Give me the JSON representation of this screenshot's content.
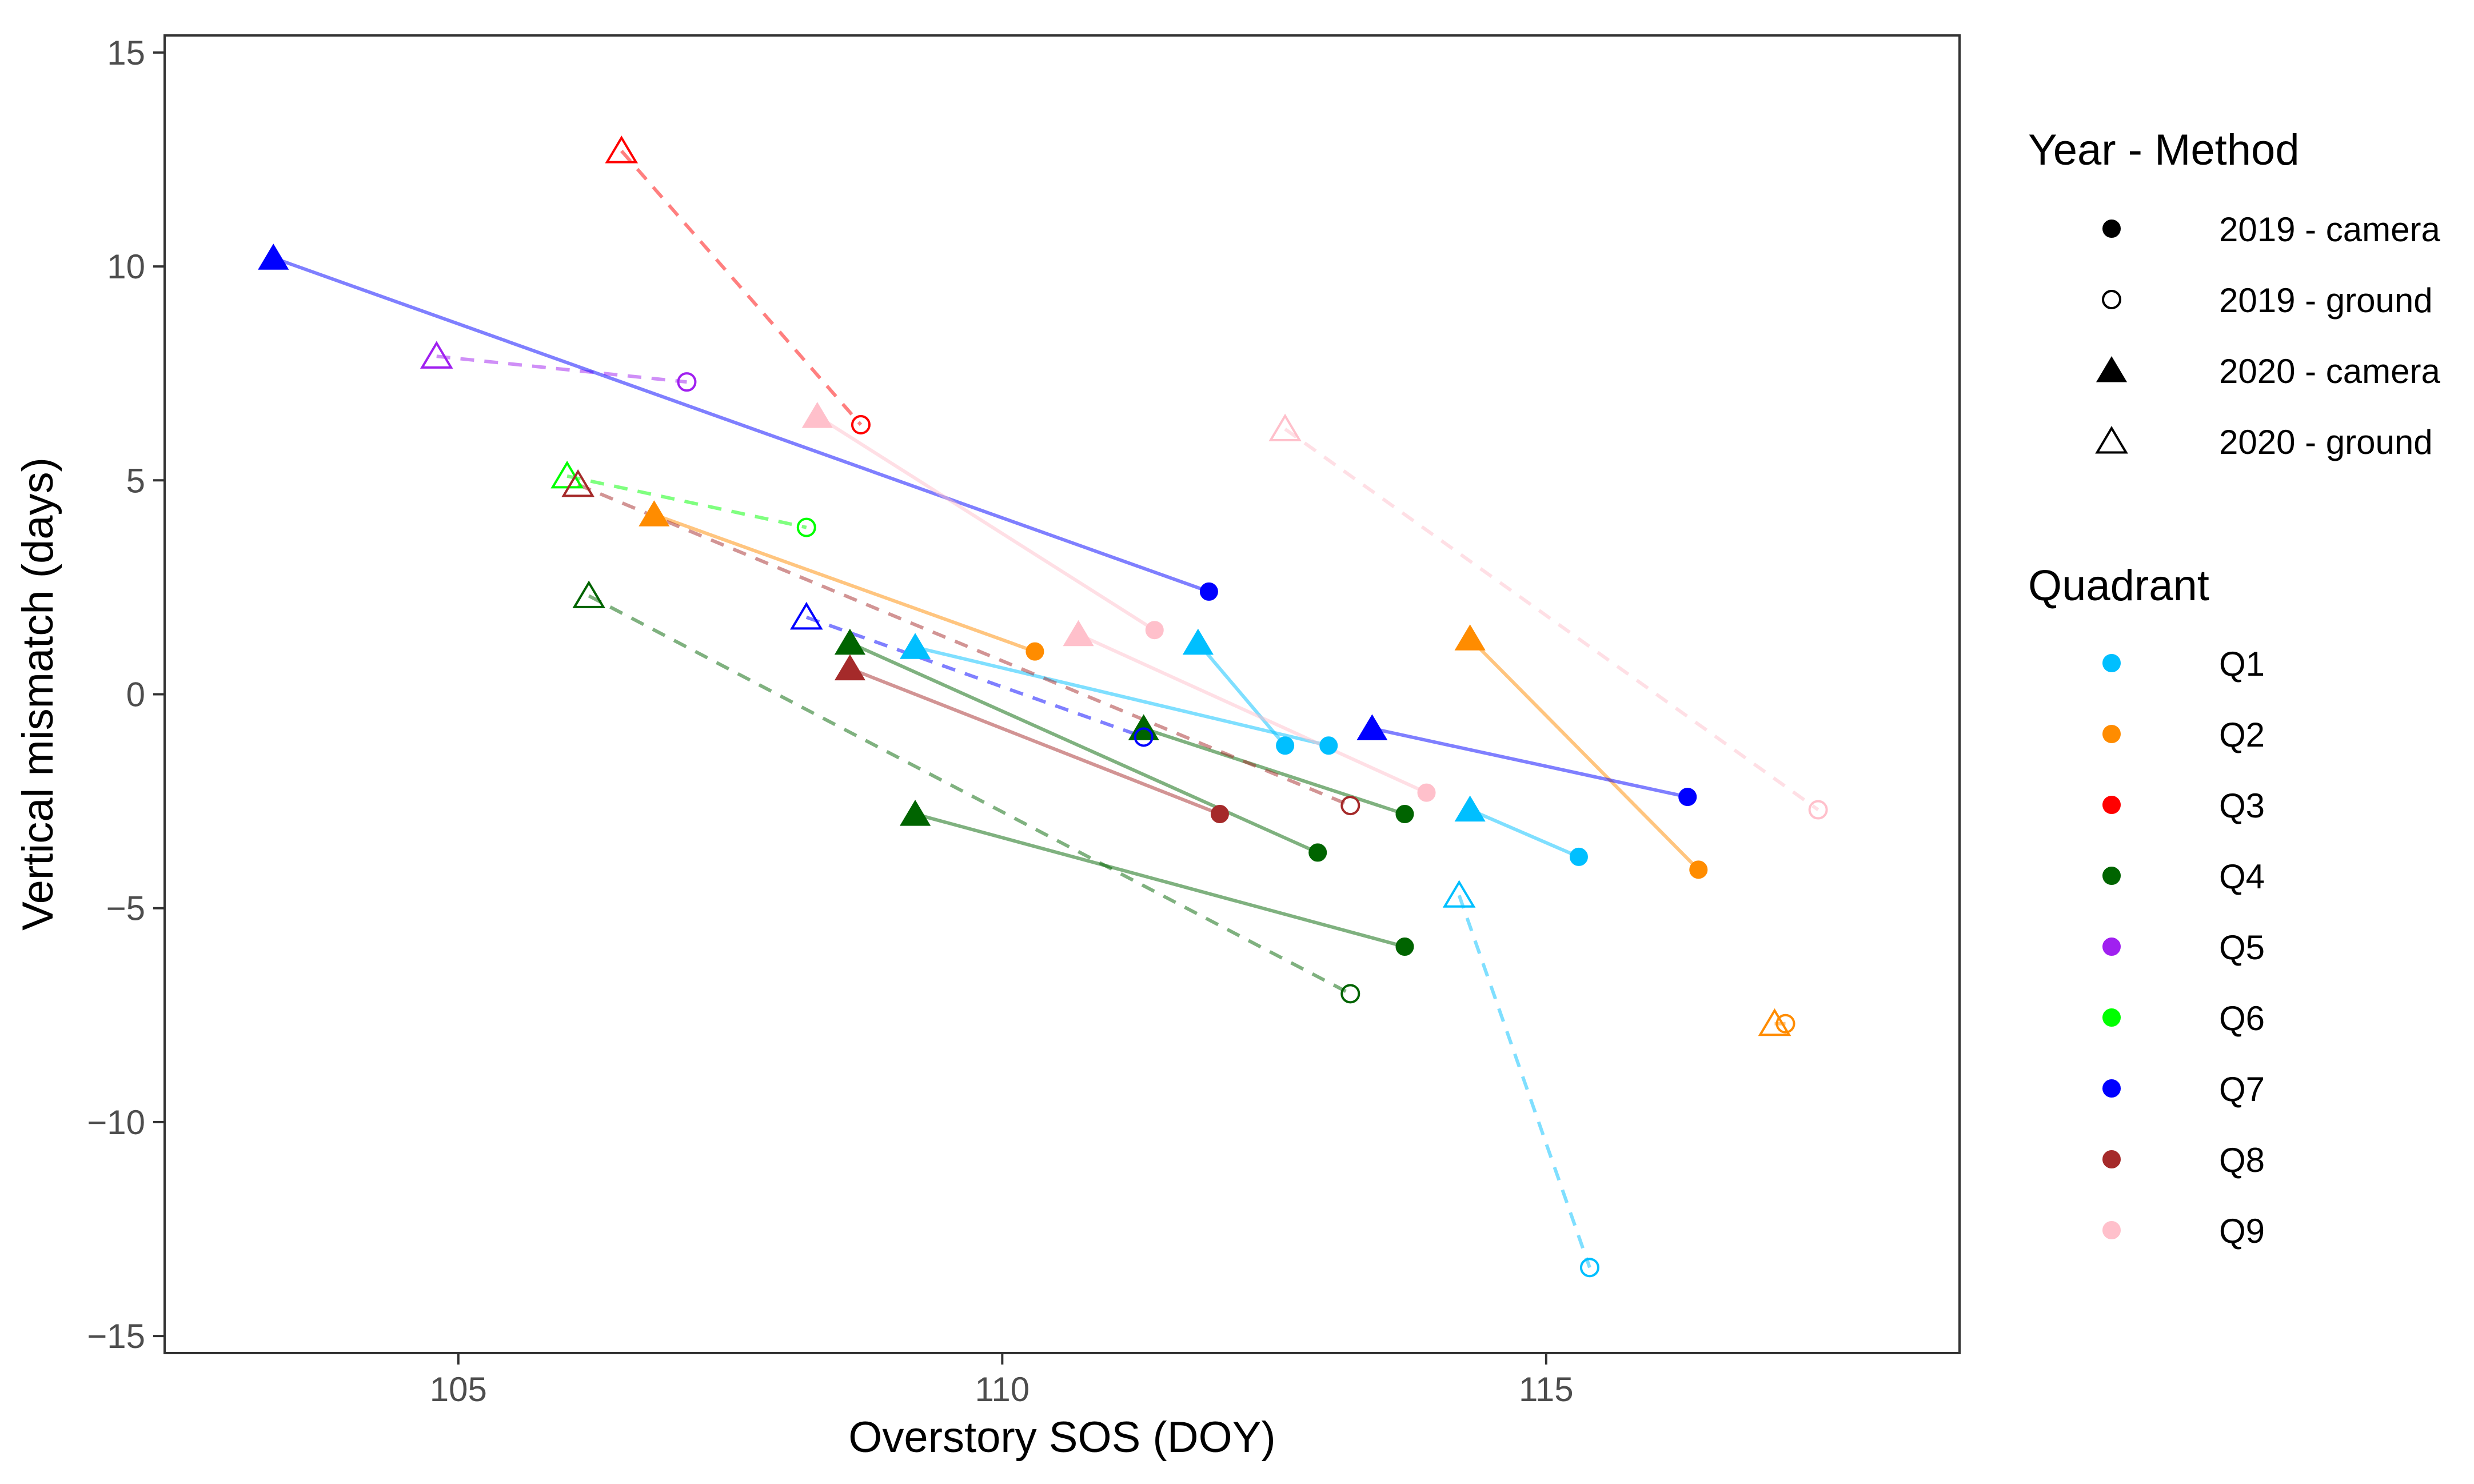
{
  "chart_data": {
    "type": "scatter",
    "title": "",
    "xlabel": "Overstory SOS (DOY)",
    "ylabel": "Vertical mismatch (days)",
    "xlim": [
      102.3,
      118.8
    ],
    "ylim": [
      -15.4,
      15.4
    ],
    "x_ticks": [
      105,
      110,
      115
    ],
    "x_tick_labels": [
      "105",
      "110",
      "115"
    ],
    "y_ticks": [
      15,
      10,
      5,
      0,
      -5,
      -10,
      -15
    ],
    "y_tick_labels": [
      "15",
      "10",
      "5",
      "0",
      "−5",
      "−10",
      "−15"
    ],
    "grid": false,
    "legend_method": {
      "title": "Year - Method",
      "entries": [
        {
          "label": "2019 - camera",
          "shape": "circle",
          "fill": true
        },
        {
          "label": "2019 - ground",
          "shape": "circle",
          "fill": false
        },
        {
          "label": "2020 - camera",
          "shape": "triangle",
          "fill": true
        },
        {
          "label": "2020 - ground",
          "shape": "triangle",
          "fill": false
        }
      ]
    },
    "legend_quadrant": {
      "title": "Quadrant",
      "entries": [
        {
          "label": "Q1",
          "color": "#00BFFF"
        },
        {
          "label": "Q2",
          "color": "#FF8C00"
        },
        {
          "label": "Q3",
          "color": "#FF0000"
        },
        {
          "label": "Q4",
          "color": "#006400"
        },
        {
          "label": "Q5",
          "color": "#A020F0"
        },
        {
          "label": "Q6",
          "color": "#00FF00"
        },
        {
          "label": "Q7",
          "color": "#0000FF"
        },
        {
          "label": "Q8",
          "color": "#A52A2A"
        },
        {
          "label": "Q9",
          "color": "#FFC0CB"
        }
      ]
    },
    "series": [
      {
        "name": "Q1",
        "method": "camera",
        "color": "#00BFFF",
        "points": [
          {
            "x": 109.2,
            "y": 1.1,
            "year": 2020
          },
          {
            "x": 113.0,
            "y": -1.2,
            "year": 2019
          }
        ]
      },
      {
        "name": "Q1",
        "method": "camera",
        "color": "#00BFFF",
        "points": [
          {
            "x": 111.8,
            "y": 1.2,
            "year": 2020
          },
          {
            "x": 112.6,
            "y": -1.2,
            "year": 2019
          }
        ]
      },
      {
        "name": "Q1",
        "method": "camera",
        "color": "#00BFFF",
        "points": [
          {
            "x": 114.3,
            "y": -2.7,
            "year": 2020
          },
          {
            "x": 115.3,
            "y": -3.8,
            "year": 2019
          }
        ]
      },
      {
        "name": "Q1",
        "method": "ground",
        "color": "#00BFFF",
        "points": [
          {
            "x": 114.2,
            "y": -4.7,
            "year": 2020
          },
          {
            "x": 115.4,
            "y": -13.4,
            "year": 2019
          }
        ]
      },
      {
        "name": "Q2",
        "method": "camera",
        "color": "#FF8C00",
        "points": [
          {
            "x": 106.8,
            "y": 4.2,
            "year": 2020
          },
          {
            "x": 110.3,
            "y": 1.0,
            "year": 2019
          }
        ]
      },
      {
        "name": "Q2",
        "method": "camera",
        "color": "#FF8C00",
        "points": [
          {
            "x": 114.3,
            "y": 1.3,
            "year": 2020
          },
          {
            "x": 116.4,
            "y": -4.1,
            "year": 2019
          }
        ]
      },
      {
        "name": "Q2",
        "method": "ground",
        "color": "#FF8C00",
        "points": [
          {
            "x": 117.1,
            "y": -7.7,
            "year": 2020
          },
          {
            "x": 117.2,
            "y": -7.7,
            "year": 2019
          }
        ]
      },
      {
        "name": "Q3",
        "method": "ground",
        "color": "#FF0000",
        "points": [
          {
            "x": 106.5,
            "y": 12.7,
            "year": 2020
          },
          {
            "x": 108.7,
            "y": 6.3,
            "year": 2019
          }
        ]
      },
      {
        "name": "Q4",
        "method": "camera",
        "color": "#006400",
        "points": [
          {
            "x": 108.6,
            "y": 1.2,
            "year": 2020
          },
          {
            "x": 112.9,
            "y": -3.7,
            "year": 2019
          }
        ]
      },
      {
        "name": "Q4",
        "method": "camera",
        "color": "#006400",
        "points": [
          {
            "x": 111.3,
            "y": -0.8,
            "year": 2020
          },
          {
            "x": 113.7,
            "y": -2.8,
            "year": 2019
          }
        ]
      },
      {
        "name": "Q4",
        "method": "camera",
        "color": "#006400",
        "points": [
          {
            "x": 109.2,
            "y": -2.8,
            "year": 2020
          },
          {
            "x": 113.7,
            "y": -5.9,
            "year": 2019
          }
        ]
      },
      {
        "name": "Q4",
        "method": "ground",
        "color": "#006400",
        "points": [
          {
            "x": 106.2,
            "y": 2.3,
            "year": 2020
          },
          {
            "x": 113.2,
            "y": -7.0,
            "year": 2019
          }
        ]
      },
      {
        "name": "Q5",
        "method": "ground",
        "color": "#A020F0",
        "points": [
          {
            "x": 104.8,
            "y": 7.9,
            "year": 2020
          },
          {
            "x": 107.1,
            "y": 7.3,
            "year": 2019
          }
        ]
      },
      {
        "name": "Q6",
        "method": "ground",
        "color": "#00FF00",
        "points": [
          {
            "x": 106.0,
            "y": 5.1,
            "year": 2020
          },
          {
            "x": 108.2,
            "y": 3.9,
            "year": 2019
          }
        ]
      },
      {
        "name": "Q7",
        "method": "camera",
        "color": "#0000FF",
        "points": [
          {
            "x": 103.3,
            "y": 10.2,
            "year": 2020
          },
          {
            "x": 111.9,
            "y": 2.4,
            "year": 2019
          }
        ]
      },
      {
        "name": "Q7",
        "method": "camera",
        "color": "#0000FF",
        "points": [
          {
            "x": 113.4,
            "y": -0.8,
            "year": 2020
          },
          {
            "x": 116.3,
            "y": -2.4,
            "year": 2019
          }
        ]
      },
      {
        "name": "Q7",
        "method": "ground",
        "color": "#0000FF",
        "points": [
          {
            "x": 108.2,
            "y": 1.8,
            "year": 2020
          },
          {
            "x": 111.3,
            "y": -1.0,
            "year": 2019
          }
        ]
      },
      {
        "name": "Q8",
        "method": "camera",
        "color": "#A52A2A",
        "points": [
          {
            "x": 108.6,
            "y": 0.6,
            "year": 2020
          },
          {
            "x": 112.0,
            "y": -2.8,
            "year": 2019
          }
        ]
      },
      {
        "name": "Q8",
        "method": "ground",
        "color": "#A52A2A",
        "points": [
          {
            "x": 106.1,
            "y": 4.9,
            "year": 2020
          },
          {
            "x": 113.2,
            "y": -2.6,
            "year": 2019
          }
        ]
      },
      {
        "name": "Q9",
        "method": "camera",
        "color": "#FFC0CB",
        "points": [
          {
            "x": 108.3,
            "y": 6.5,
            "year": 2020
          },
          {
            "x": 111.4,
            "y": 1.5,
            "year": 2019
          }
        ]
      },
      {
        "name": "Q9",
        "method": "camera",
        "color": "#FFC0CB",
        "points": [
          {
            "x": 110.7,
            "y": 1.4,
            "year": 2020
          },
          {
            "x": 113.9,
            "y": -2.3,
            "year": 2019
          }
        ]
      },
      {
        "name": "Q9",
        "method": "ground",
        "color": "#FFC0CB",
        "points": [
          {
            "x": 112.6,
            "y": 6.2,
            "year": 2020
          },
          {
            "x": 117.5,
            "y": -2.7,
            "year": 2019
          }
        ]
      }
    ]
  }
}
